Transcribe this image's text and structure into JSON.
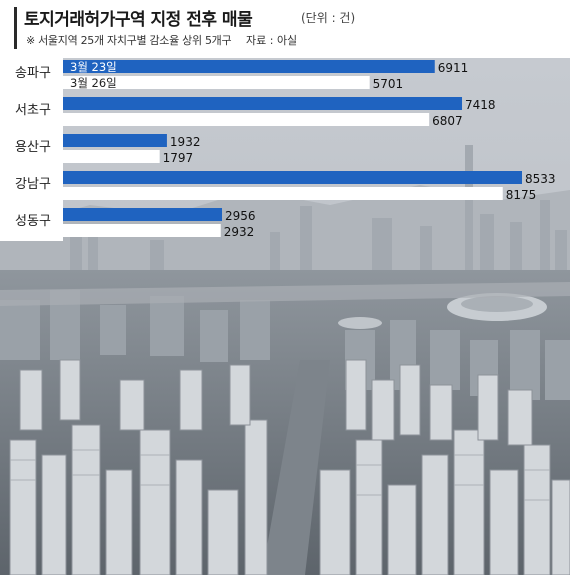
{
  "header": {
    "title": "토지거래허가구역 지정 전후 매물",
    "unit": "(단위 : 건)",
    "note": "※ 서울지역 25개 자치구별 감소율 상위 5개구",
    "source": "자료 : 아실"
  },
  "chart_data": {
    "type": "bar",
    "orientation": "horizontal",
    "title": "토지거래허가구역 지정 전후 매물",
    "unit": "건",
    "categories": [
      "송파구",
      "서초구",
      "용산구",
      "강남구",
      "성동구"
    ],
    "series": [
      {
        "name": "3월 23일",
        "color": "#1f63c0",
        "values": [
          6911,
          7418,
          1932,
          8533,
          2956
        ]
      },
      {
        "name": "3월 26일",
        "color": "#ffffff",
        "values": [
          5701,
          6807,
          1797,
          8175,
          2932
        ]
      }
    ],
    "xlim": [
      0,
      8533
    ],
    "grid": false,
    "legend": "inline-first-category"
  }
}
